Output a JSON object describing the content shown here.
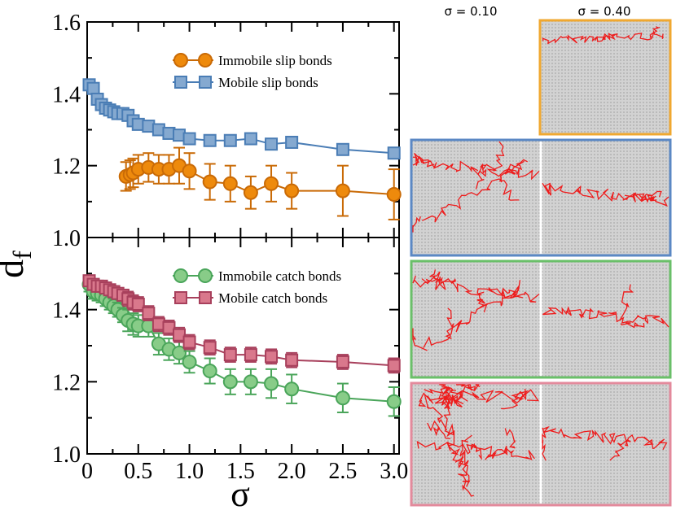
{
  "chart_data": {
    "type": "scatter",
    "xlabel": "σ",
    "ylabel": "d_f",
    "xlim": [
      0,
      3.05
    ],
    "x_ticks": [
      "0",
      "0.5",
      "1.0",
      "1.5",
      "2.0",
      "2.5",
      "3.0"
    ],
    "panels": [
      {
        "name": "slip-bonds",
        "ylim": [
          1.0,
          1.6
        ],
        "y_ticks": [
          "1.0",
          "1.2",
          "1.4",
          "1.6"
        ],
        "legend_position": "top-right",
        "series": [
          {
            "name": "Immobile slip bonds",
            "color": "#ee8a0c",
            "edge": "#c96a06",
            "marker": "circle",
            "x": [
              0.38,
              0.42,
              0.45,
              0.5,
              0.6,
              0.7,
              0.8,
              0.9,
              1.0,
              1.2,
              1.4,
              1.6,
              1.8,
              2.0,
              2.5,
              3.0
            ],
            "y": [
              1.17,
              1.175,
              1.18,
              1.19,
              1.195,
              1.19,
              1.19,
              1.2,
              1.185,
              1.155,
              1.15,
              1.125,
              1.15,
              1.13,
              1.13,
              1.12
            ],
            "err": [
              0.04,
              0.04,
              0.04,
              0.04,
              0.04,
              0.04,
              0.04,
              0.05,
              0.05,
              0.05,
              0.05,
              0.045,
              0.05,
              0.05,
              0.07,
              0.07
            ]
          },
          {
            "name": "Mobile slip bonds",
            "color": "#85a9d0",
            "edge": "#4a7db5",
            "marker": "square",
            "x": [
              0.02,
              0.06,
              0.1,
              0.14,
              0.18,
              0.22,
              0.26,
              0.3,
              0.35,
              0.4,
              0.45,
              0.5,
              0.6,
              0.7,
              0.8,
              0.9,
              1.0,
              1.2,
              1.4,
              1.6,
              1.8,
              2.0,
              2.5,
              3.0
            ],
            "y": [
              1.425,
              1.415,
              1.385,
              1.37,
              1.36,
              1.355,
              1.35,
              1.345,
              1.345,
              1.34,
              1.325,
              1.315,
              1.31,
              1.3,
              1.29,
              1.285,
              1.275,
              1.27,
              1.27,
              1.275,
              1.26,
              1.265,
              1.245,
              1.235
            ]
          }
        ]
      },
      {
        "name": "catch-bonds",
        "ylim": [
          1.0,
          1.6
        ],
        "y_ticks": [
          "1.0",
          "1.2",
          "1.4"
        ],
        "legend_position": "top-right",
        "series": [
          {
            "name": "Immobile catch bonds",
            "color": "#88cc88",
            "edge": "#4aa55a",
            "marker": "circle",
            "x": [
              0.02,
              0.06,
              0.1,
              0.14,
              0.18,
              0.22,
              0.26,
              0.3,
              0.35,
              0.4,
              0.45,
              0.5,
              0.6,
              0.7,
              0.8,
              0.9,
              1.0,
              1.2,
              1.4,
              1.6,
              1.8,
              2.0,
              2.5,
              3.0
            ],
            "y": [
              1.47,
              1.45,
              1.445,
              1.44,
              1.43,
              1.42,
              1.41,
              1.4,
              1.385,
              1.37,
              1.36,
              1.355,
              1.355,
              1.305,
              1.29,
              1.28,
              1.255,
              1.23,
              1.2,
              1.2,
              1.195,
              1.18,
              1.155,
              1.145
            ],
            "err": [
              0.02,
              0.02,
              0.02,
              0.02,
              0.02,
              0.02,
              0.02,
              0.02,
              0.02,
              0.03,
              0.03,
              0.03,
              0.03,
              0.03,
              0.03,
              0.03,
              0.03,
              0.035,
              0.035,
              0.035,
              0.04,
              0.04,
              0.04,
              0.04
            ]
          },
          {
            "name": "Mobile catch bonds",
            "color": "#d9788c",
            "edge": "#a8405c",
            "marker": "square",
            "x": [
              0.02,
              0.06,
              0.1,
              0.14,
              0.18,
              0.22,
              0.26,
              0.3,
              0.35,
              0.4,
              0.45,
              0.5,
              0.6,
              0.7,
              0.8,
              0.9,
              1.0,
              1.2,
              1.4,
              1.6,
              1.8,
              2.0,
              2.5,
              3.0
            ],
            "y": [
              1.48,
              1.47,
              1.465,
              1.465,
              1.46,
              1.455,
              1.45,
              1.445,
              1.44,
              1.43,
              1.42,
              1.415,
              1.39,
              1.36,
              1.35,
              1.33,
              1.31,
              1.295,
              1.275,
              1.275,
              1.27,
              1.26,
              1.255,
              1.245
            ],
            "err": [
              0.015,
              0.015,
              0.015,
              0.015,
              0.015,
              0.015,
              0.015,
              0.015,
              0.015,
              0.02,
              0.02,
              0.02,
              0.02,
              0.02,
              0.02,
              0.02,
              0.02,
              0.02,
              0.02,
              0.02,
              0.02,
              0.02,
              0.02,
              0.02
            ]
          }
        ]
      }
    ],
    "simulation_snapshots": {
      "column_labels": [
        "σ = 0.10",
        "σ = 0.40"
      ],
      "rows": [
        {
          "name": "immobile-slip",
          "frame_color": "#f0a830",
          "columns": [
            "σ = 0.40"
          ]
        },
        {
          "name": "mobile-slip",
          "frame_color": "#5b88c4",
          "columns": [
            "σ = 0.10",
            "σ = 0.40"
          ]
        },
        {
          "name": "immobile-catch",
          "frame_color": "#6abf69",
          "columns": [
            "σ = 0.10",
            "σ = 0.40"
          ]
        },
        {
          "name": "mobile-catch",
          "frame_color": "#e38a9c",
          "columns": [
            "σ = 0.10",
            "σ = 0.40"
          ]
        }
      ],
      "trace_color": "#ee1c1c"
    }
  }
}
